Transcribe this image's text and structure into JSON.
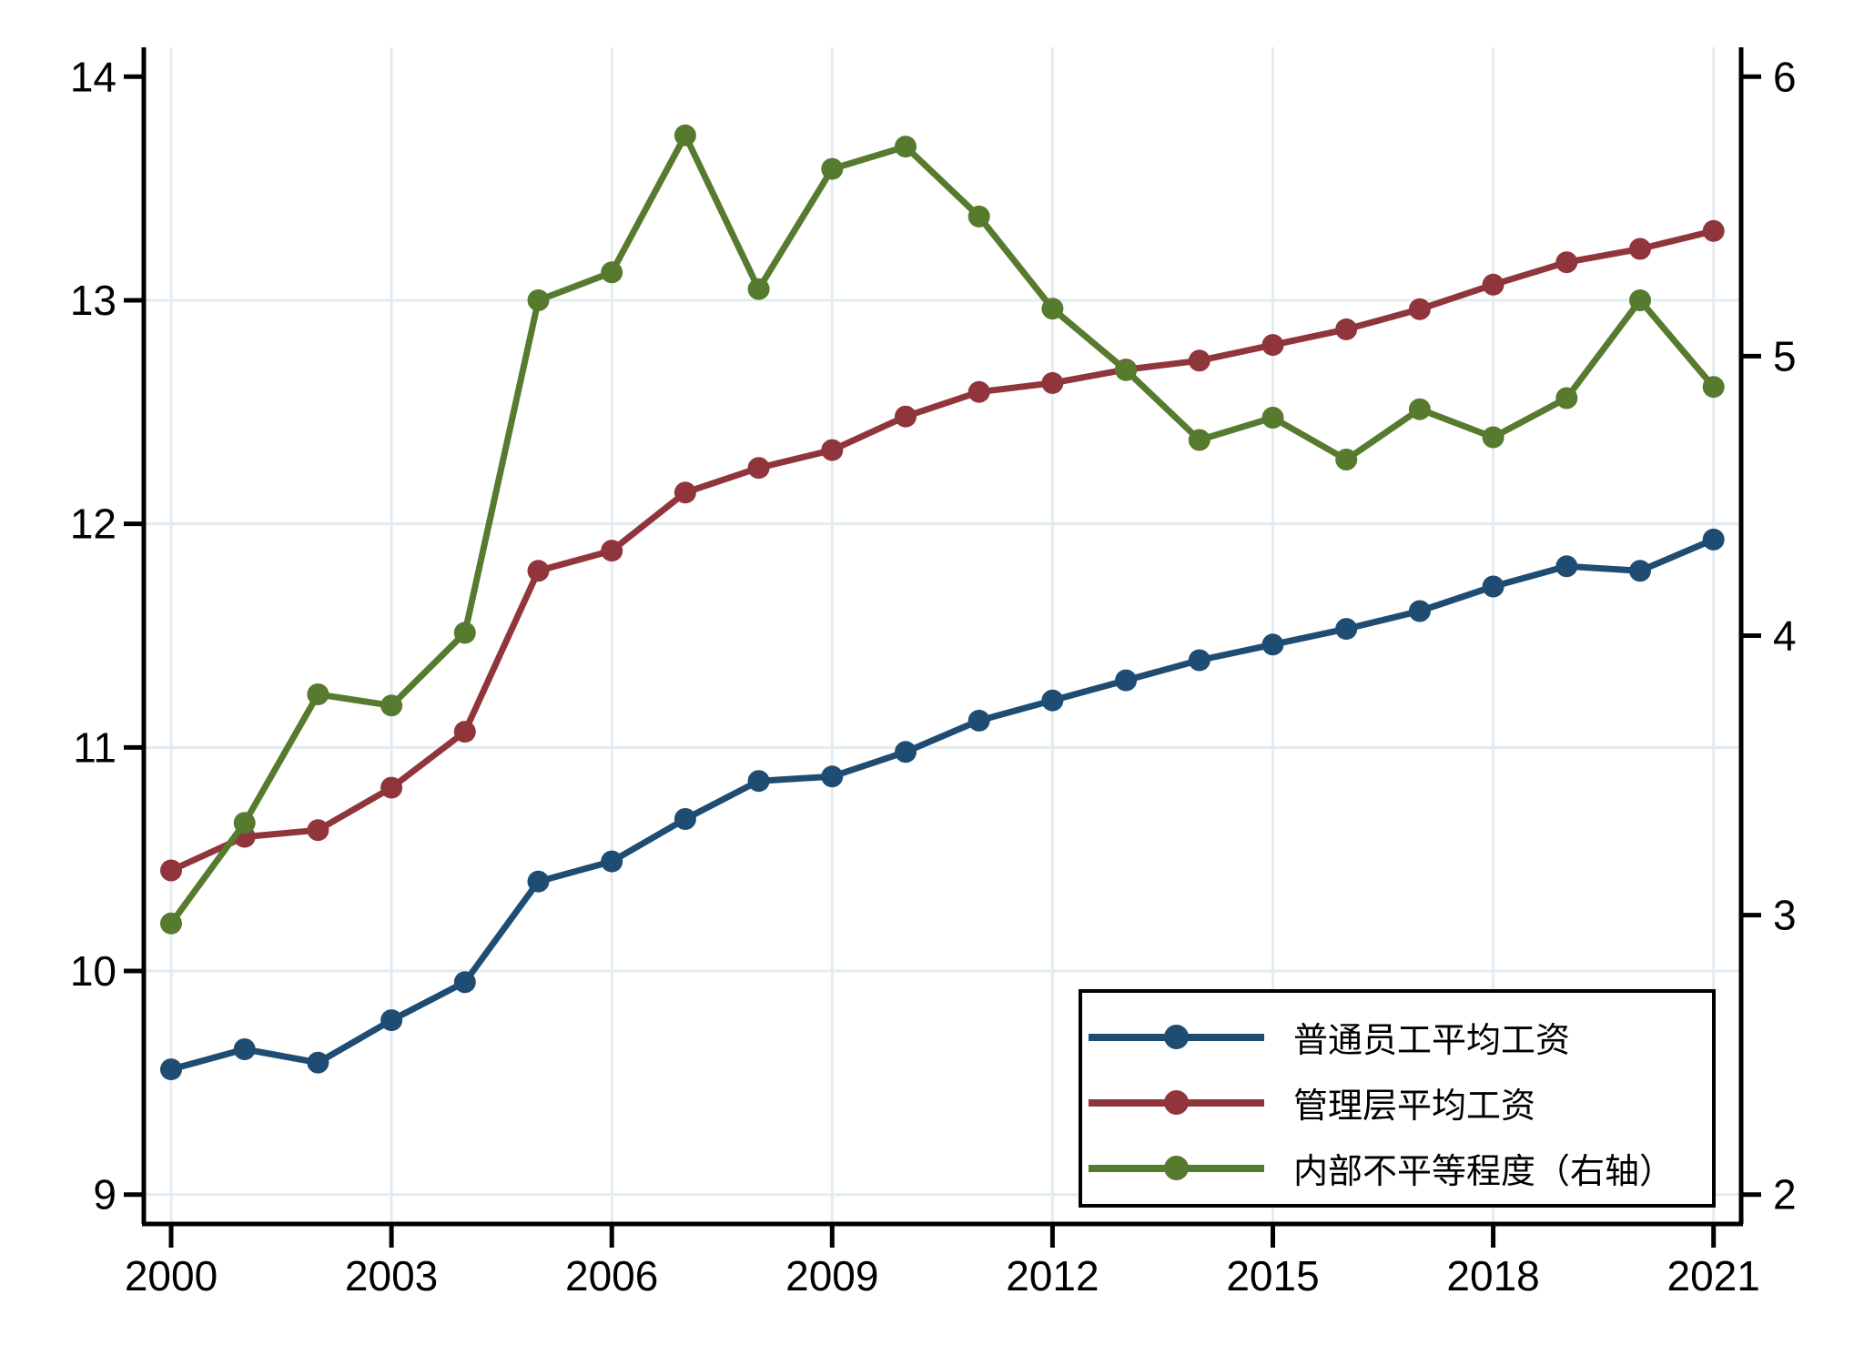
{
  "chart_data": {
    "type": "line",
    "title": "",
    "xlabel": "",
    "ylabel_left": "",
    "ylabel_right": "",
    "x": [
      2000,
      2001,
      2002,
      2003,
      2004,
      2005,
      2006,
      2007,
      2008,
      2009,
      2010,
      2011,
      2012,
      2013,
      2014,
      2015,
      2016,
      2017,
      2018,
      2019,
      2020,
      2021
    ],
    "x_tick_labels": [
      "2000",
      "2003",
      "2006",
      "2009",
      "2012",
      "2015",
      "2018",
      "2021"
    ],
    "x_ticks": [
      2000,
      2003,
      2006,
      2009,
      2012,
      2015,
      2018,
      2021
    ],
    "left_axis": {
      "range": [
        9,
        14
      ],
      "ticks": [
        9,
        10,
        11,
        12,
        13,
        14
      ],
      "tick_labels": [
        "9",
        "10",
        "11",
        "12",
        "13",
        "14"
      ]
    },
    "right_axis": {
      "range": [
        2,
        6
      ],
      "ticks": [
        2,
        3,
        4,
        5,
        6
      ],
      "tick_labels": [
        "2",
        "3",
        "4",
        "5",
        "6"
      ]
    },
    "grid": true,
    "gridlines_horizontal_at_left_values": [
      9,
      10,
      11,
      12,
      13
    ],
    "legend_position": "inside-bottom-right",
    "series": [
      {
        "name": "普通员工平均工资",
        "axis": "left",
        "color": "#1e4c72",
        "values": [
          9.56,
          9.65,
          9.59,
          9.78,
          9.95,
          10.4,
          10.49,
          10.68,
          10.85,
          10.87,
          10.98,
          11.12,
          11.21,
          11.3,
          11.39,
          11.46,
          11.53,
          11.61,
          11.72,
          11.81,
          11.79,
          11.93
        ]
      },
      {
        "name": "管理层平均工资",
        "axis": "left",
        "color": "#90353b",
        "values": [
          10.45,
          10.6,
          10.63,
          10.82,
          11.07,
          11.79,
          11.88,
          12.14,
          12.25,
          12.33,
          12.48,
          12.59,
          12.63,
          12.69,
          12.73,
          12.8,
          12.87,
          12.96,
          13.07,
          13.17,
          13.23,
          13.31
        ]
      },
      {
        "name": "内部不平等程度（右轴）",
        "axis": "right",
        "color": "#567a2e",
        "values": [
          2.97,
          3.33,
          3.79,
          3.75,
          4.01,
          5.2,
          5.3,
          5.79,
          5.24,
          5.67,
          5.75,
          5.5,
          5.17,
          4.95,
          4.7,
          4.78,
          4.63,
          4.81,
          4.71,
          4.85,
          5.2,
          4.89
        ]
      }
    ]
  },
  "colors": {
    "background": "#ffffff",
    "grid": "#e3ecf1",
    "axis": "#000000",
    "tick_text": "#000000"
  }
}
